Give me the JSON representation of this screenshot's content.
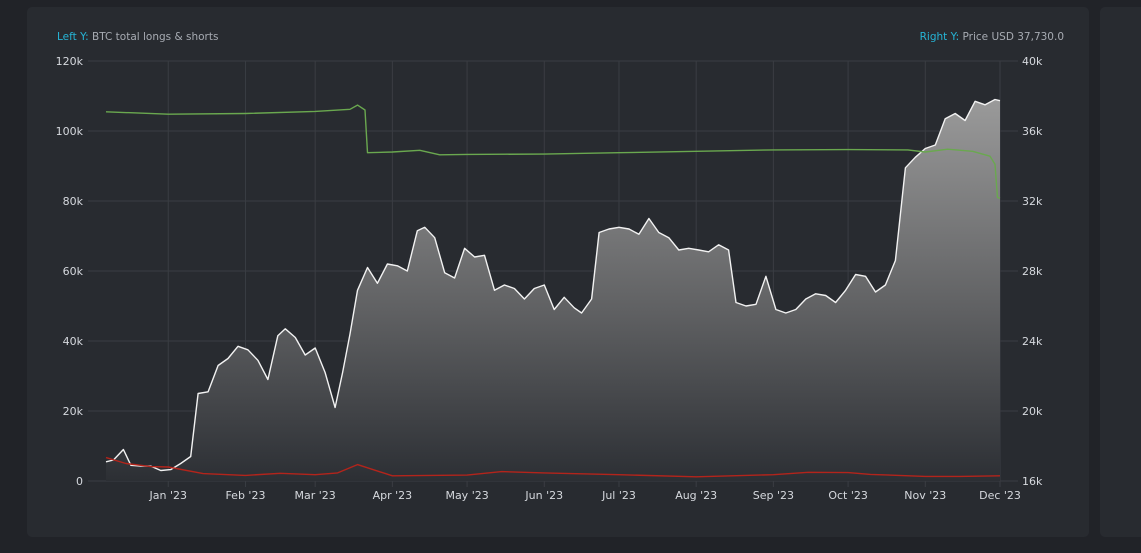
{
  "legend": {
    "left_key": "Left Y:",
    "left_label": "BTC total longs & shorts",
    "right_key": "Right Y:",
    "right_label": "Price USD 37,730.0"
  },
  "colors": {
    "background": "#212328",
    "panel": "#282b30",
    "grid": "#3a3d43",
    "legend_key": "#26b5d6",
    "price_line": "#f2f2f2",
    "longs_line": "#6aa84f",
    "shorts_line": "#b3241b"
  },
  "chart_data": {
    "type": "line",
    "title": "",
    "xlabel": "",
    "ylabel_left": "BTC total longs & shorts",
    "ylabel_right": "Price USD",
    "x_ticks": [
      "Jan '23",
      "Feb '23",
      "Mar '23",
      "Apr '23",
      "May '23",
      "Jun '23",
      "Jul '23",
      "Aug '23",
      "Sep '23",
      "Oct '23",
      "Nov '23",
      "Dec '23"
    ],
    "left_y_ticks": [
      "0",
      "20k",
      "40k",
      "60k",
      "80k",
      "100k",
      "120k"
    ],
    "right_y_ticks": [
      "16k",
      "20k",
      "24k",
      "28k",
      "32k",
      "36k",
      "40k"
    ],
    "ylim_left": [
      0,
      120000
    ],
    "ylim_right": [
      16000,
      40000
    ],
    "grid": true,
    "legend_position": "top",
    "x_range": [
      "2022-12-07",
      "2023-12-01"
    ],
    "series": [
      {
        "name": "Price USD",
        "axis": "right",
        "style": "area",
        "x": [
          "2022-12-07",
          "2022-12-10",
          "2022-12-14",
          "2022-12-17",
          "2022-12-21",
          "2022-12-25",
          "2022-12-29",
          "2023-01-02",
          "2023-01-06",
          "2023-01-10",
          "2023-01-13",
          "2023-01-17",
          "2023-01-21",
          "2023-01-25",
          "2023-01-29",
          "2023-02-02",
          "2023-02-06",
          "2023-02-10",
          "2023-02-14",
          "2023-02-17",
          "2023-02-21",
          "2023-02-25",
          "2023-03-01",
          "2023-03-05",
          "2023-03-09",
          "2023-03-12",
          "2023-03-15",
          "2023-03-18",
          "2023-03-22",
          "2023-03-26",
          "2023-03-30",
          "2023-04-03",
          "2023-04-07",
          "2023-04-11",
          "2023-04-14",
          "2023-04-18",
          "2023-04-22",
          "2023-04-26",
          "2023-04-30",
          "2023-05-04",
          "2023-05-08",
          "2023-05-12",
          "2023-05-16",
          "2023-05-20",
          "2023-05-24",
          "2023-05-28",
          "2023-06-01",
          "2023-06-05",
          "2023-06-09",
          "2023-06-13",
          "2023-06-16",
          "2023-06-20",
          "2023-06-23",
          "2023-06-27",
          "2023-07-01",
          "2023-07-05",
          "2023-07-09",
          "2023-07-13",
          "2023-07-17",
          "2023-07-21",
          "2023-07-25",
          "2023-07-29",
          "2023-08-02",
          "2023-08-06",
          "2023-08-10",
          "2023-08-14",
          "2023-08-17",
          "2023-08-21",
          "2023-08-25",
          "2023-08-29",
          "2023-09-02",
          "2023-09-06",
          "2023-09-10",
          "2023-09-14",
          "2023-09-18",
          "2023-09-22",
          "2023-09-26",
          "2023-09-30",
          "2023-10-04",
          "2023-10-08",
          "2023-10-12",
          "2023-10-16",
          "2023-10-20",
          "2023-10-24",
          "2023-10-28",
          "2023-11-01",
          "2023-11-05",
          "2023-11-09",
          "2023-11-13",
          "2023-11-17",
          "2023-11-21",
          "2023-11-25",
          "2023-11-29",
          "2023-12-01"
        ],
        "values": [
          17100,
          17200,
          17800,
          16900,
          16850,
          16850,
          16600,
          16650,
          17000,
          17400,
          21000,
          21100,
          22600,
          23000,
          23700,
          23500,
          22900,
          21800,
          24300,
          24700,
          24200,
          23200,
          23600,
          22200,
          20200,
          22200,
          24400,
          26900,
          28200,
          27300,
          28400,
          28300,
          28000,
          30300,
          30500,
          29900,
          27900,
          27600,
          29300,
          28800,
          28900,
          26900,
          27200,
          27000,
          26400,
          27000,
          27200,
          25800,
          26500,
          25900,
          25600,
          26400,
          30200,
          30400,
          30500,
          30400,
          30100,
          31000,
          30200,
          29900,
          29200,
          29300,
          29200,
          29100,
          29500,
          29200,
          26200,
          26000,
          26100,
          27700,
          25800,
          25600,
          25800,
          26400,
          26700,
          26600,
          26200,
          26900,
          27800,
          27700,
          26800,
          27200,
          28600,
          33900,
          34500,
          35000,
          35200,
          36700,
          37000,
          36600,
          37700,
          37500,
          37800,
          37730
        ]
      },
      {
        "name": "BTC total longs",
        "axis": "left",
        "style": "line",
        "x": [
          "2022-12-07",
          "2023-01-01",
          "2023-02-01",
          "2023-03-01",
          "2023-03-15",
          "2023-03-18",
          "2023-03-21",
          "2023-03-22",
          "2023-04-01",
          "2023-04-12",
          "2023-04-20",
          "2023-05-01",
          "2023-06-01",
          "2023-07-01",
          "2023-08-01",
          "2023-09-01",
          "2023-10-01",
          "2023-10-25",
          "2023-11-01",
          "2023-11-10",
          "2023-11-20",
          "2023-11-27",
          "2023-11-29",
          "2023-11-30",
          "2023-12-01"
        ],
        "values": [
          105500,
          104800,
          105000,
          105600,
          106200,
          107400,
          106000,
          93800,
          94000,
          94500,
          93200,
          93300,
          93400,
          93800,
          94200,
          94600,
          94700,
          94600,
          94000,
          94800,
          94200,
          92800,
          90500,
          81000,
          80800
        ]
      },
      {
        "name": "BTC total shorts",
        "axis": "left",
        "style": "line",
        "x": [
          "2022-12-07",
          "2022-12-15",
          "2022-12-25",
          "2023-01-01",
          "2023-01-15",
          "2023-02-01",
          "2023-02-15",
          "2023-03-01",
          "2023-03-10",
          "2023-03-18",
          "2023-04-01",
          "2023-05-01",
          "2023-05-15",
          "2023-06-01",
          "2023-07-01",
          "2023-08-01",
          "2023-09-01",
          "2023-09-15",
          "2023-10-01",
          "2023-10-10",
          "2023-11-01",
          "2023-11-15",
          "2023-12-01"
        ],
        "values": [
          6700,
          5000,
          4100,
          4000,
          2100,
          1600,
          2200,
          1800,
          2300,
          4700,
          1500,
          1700,
          2700,
          2300,
          1800,
          1200,
          1800,
          2500,
          2400,
          1900,
          1300,
          1300,
          1500
        ]
      }
    ]
  }
}
